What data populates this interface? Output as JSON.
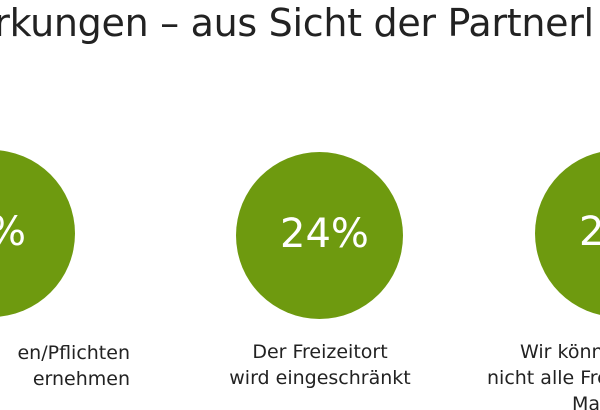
{
  "slide": {
    "title": "irkungen – aus Sicht der Partnerl",
    "accent_color": "#6e9a0f",
    "items": [
      {
        "percent": "%",
        "caption_lines": [
          "en/Pflichten",
          "ernehmen"
        ]
      },
      {
        "percent": "24%",
        "caption_lines": [
          "Der Freizeitort",
          "wird eingeschränkt"
        ]
      },
      {
        "percent": "2",
        "caption_lines": [
          "Wir könn",
          "nicht alle Fre",
          "Ma"
        ]
      }
    ]
  }
}
